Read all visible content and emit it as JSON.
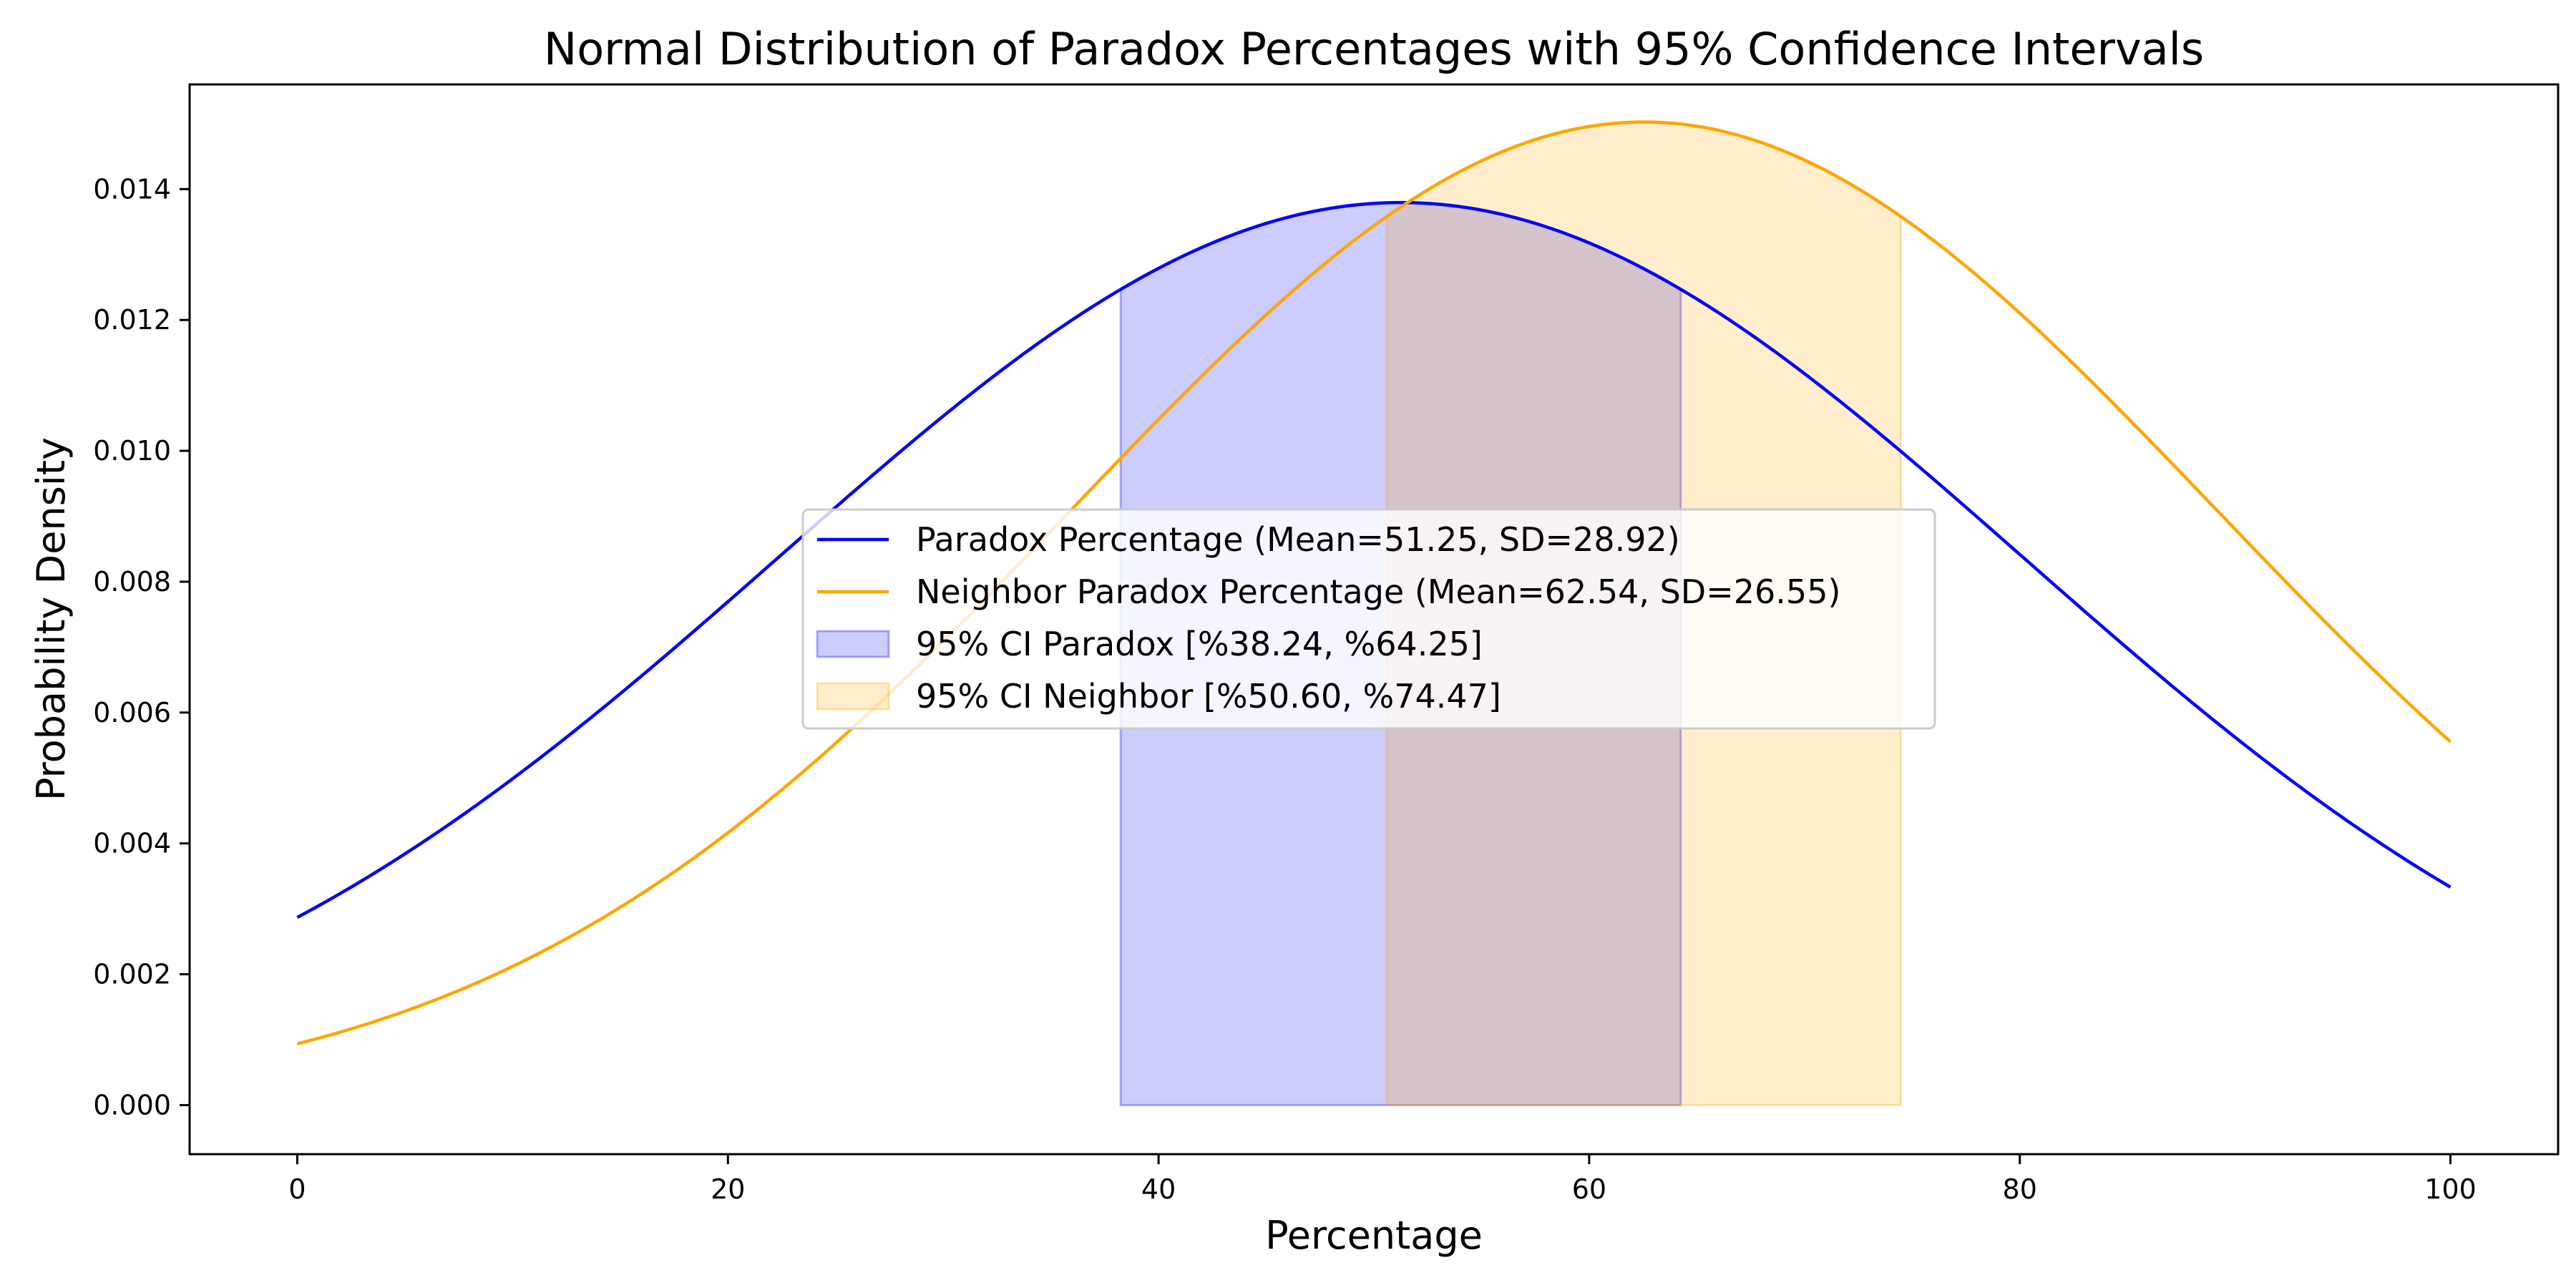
{
  "chart_data": {
    "type": "line",
    "title": "Normal Distribution of Paradox Percentages with 95% Confidence Intervals",
    "xlabel": "Percentage",
    "ylabel": "Probability Density",
    "xlim": [
      -5,
      105
    ],
    "ylim": [
      -0.00075,
      0.0156
    ],
    "x_ticks": [
      0,
      20,
      40,
      60,
      80,
      100
    ],
    "y_ticks": [
      0.0,
      0.002,
      0.004,
      0.006,
      0.008,
      0.01,
      0.012,
      0.014
    ],
    "x_tick_labels": [
      "0",
      "20",
      "40",
      "60",
      "80",
      "100"
    ],
    "y_tick_labels": [
      "0.000",
      "0.002",
      "0.004",
      "0.006",
      "0.008",
      "0.010",
      "0.012",
      "0.014"
    ],
    "grid": false,
    "legend_position": "center",
    "series": [
      {
        "name": "Paradox Percentage (Mean=51.25, SD=28.92)",
        "mean": 51.25,
        "sd": 28.92,
        "x": [
          0,
          10,
          20,
          30,
          40,
          50,
          51.25,
          60,
          70,
          80,
          90,
          100
        ],
        "y": [
          0.00288,
          0.00495,
          0.00767,
          0.01048,
          0.01275,
          0.01379,
          0.01379,
          0.01314,
          0.01117,
          0.00841,
          0.00562,
          0.00333
        ],
        "color": "#0000ff"
      },
      {
        "name": "Neighbor Paradox Percentage (Mean=62.54, SD=26.55)",
        "mean": 62.54,
        "sd": 26.55,
        "x": [
          0,
          10,
          20,
          30,
          40,
          50,
          62.54,
          70,
          80,
          90,
          100
        ],
        "y": [
          0.00094,
          0.00211,
          0.00417,
          0.00711,
          0.01061,
          0.0135,
          0.01502,
          0.01445,
          0.01209,
          0.00883,
          0.00553
        ],
        "color": "#ffa500"
      }
    ],
    "intervals": [
      {
        "name": "95% CI Paradox [%38.24, %64.25]",
        "series": 0,
        "low": 38.24,
        "high": 64.25,
        "fill": "#0000ff",
        "fill_opacity": 0.2
      },
      {
        "name": "95% CI Neighbor [%50.60, %74.47]",
        "series": 1,
        "low": 50.6,
        "high": 74.47,
        "fill": "#ffa500",
        "fill_opacity": 0.2
      }
    ]
  }
}
